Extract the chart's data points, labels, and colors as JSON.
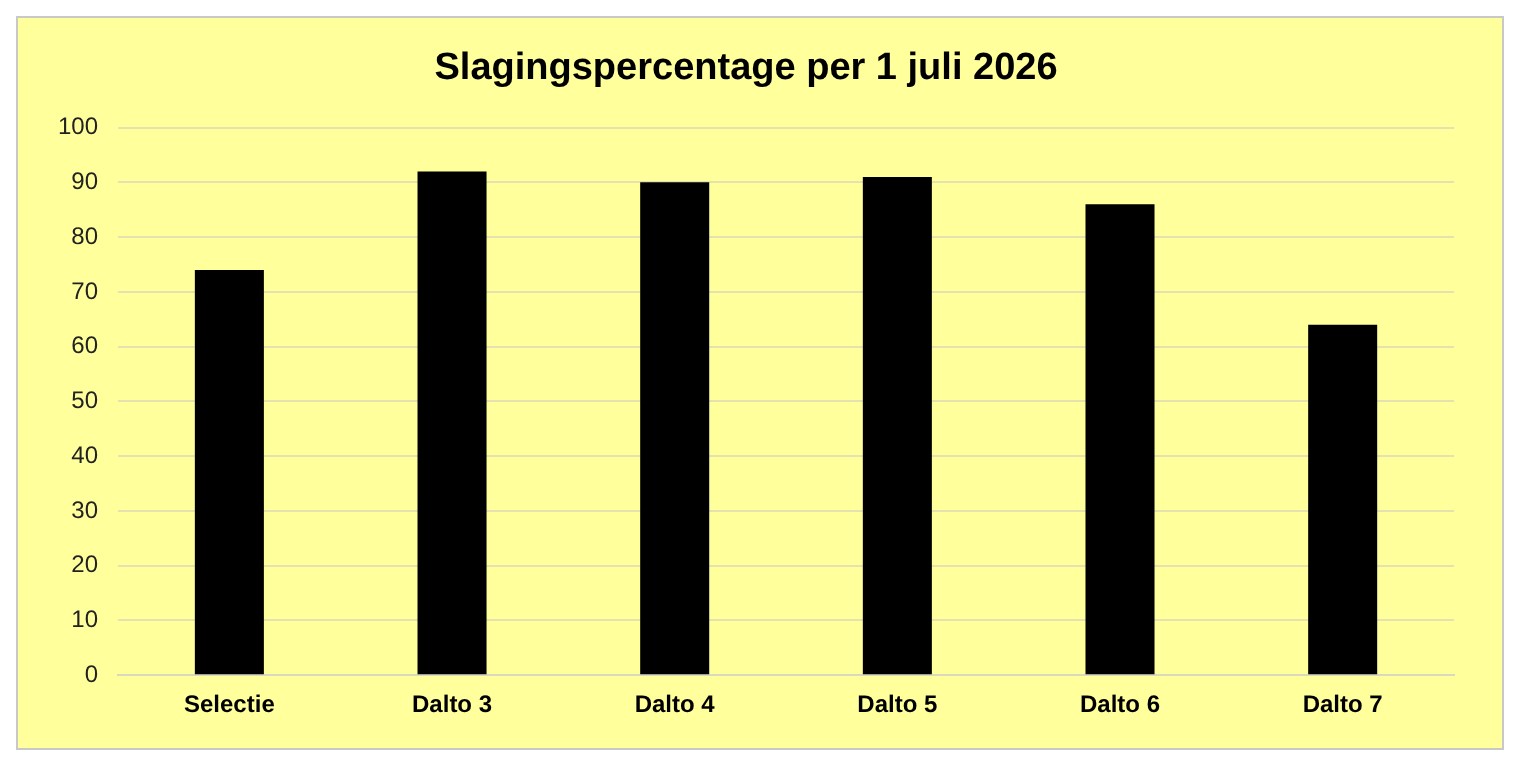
{
  "chart_data": {
    "type": "bar",
    "title": "Slagingspercentage per 1 juli 2026",
    "categories": [
      "Selectie",
      "Dalto 3",
      "Dalto 4",
      "Dalto 5",
      "Dalto 6",
      "Dalto 7"
    ],
    "values": [
      74,
      92,
      90,
      91,
      86,
      64
    ],
    "color": "#000000",
    "ylim": [
      0,
      100
    ],
    "yticks": [
      0,
      10,
      20,
      30,
      40,
      50,
      60,
      70,
      80,
      90,
      100
    ],
    "grid": "y"
  }
}
